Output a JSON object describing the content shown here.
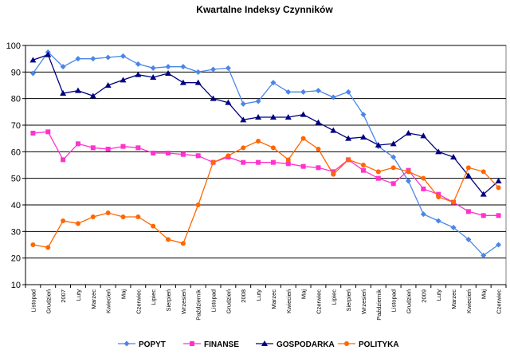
{
  "chart_data": {
    "type": "line",
    "title": "Kwartalne Indeksy Czynników",
    "xlabel": "",
    "ylabel": "",
    "ylim": [
      10,
      100
    ],
    "yticks": [
      10,
      20,
      30,
      40,
      50,
      60,
      70,
      80,
      90,
      100
    ],
    "grid": true,
    "legend_position": "bottom",
    "categories": [
      "Listopad",
      "Grudzień",
      "2007",
      "Luty",
      "Marzec",
      "Kwiecień",
      "Maj",
      "Czerwiec",
      "Lipiec",
      "Sierpień",
      "Wrzesień",
      "Październik",
      "Listopad",
      "Grudzień",
      "2008",
      "Luty",
      "Marzec",
      "Kwiecień",
      "Maj",
      "Czerwiec",
      "Lipiec",
      "Sierpień",
      "Wrzesień",
      "Październik",
      "Listopad",
      "Grudzień",
      "2009",
      "Luty",
      "Marzec",
      "Kwiecień",
      "Maj",
      "Czerwiec"
    ],
    "series": [
      {
        "name": "POPYT",
        "color": "#4a86e8",
        "marker": "diamond",
        "values": [
          89.5,
          97.5,
          92,
          95,
          95,
          95.5,
          96,
          93,
          91.5,
          92,
          92,
          90,
          91,
          91.5,
          78,
          79,
          86,
          82.5,
          82.5,
          83,
          80.5,
          82.5,
          74,
          62,
          58,
          49,
          36.5,
          34,
          31.5,
          27,
          21,
          25
        ]
      },
      {
        "name": "FINANSE",
        "color": "#ff33cc",
        "marker": "square",
        "values": [
          67,
          67.5,
          57,
          63,
          61.5,
          61,
          62,
          61.5,
          59.5,
          59.5,
          59,
          58.5,
          56,
          58,
          56,
          56,
          56,
          55.5,
          54.5,
          54,
          52.5,
          57,
          53,
          50,
          48,
          53,
          46,
          44,
          41,
          37.5,
          36,
          36
        ]
      },
      {
        "name": "GOSPODARKA",
        "color": "#000080",
        "marker": "triangle",
        "values": [
          94.5,
          96.5,
          82,
          83,
          81,
          85,
          87,
          89,
          88,
          89.5,
          86,
          86,
          80,
          78.5,
          72,
          73,
          73,
          73,
          74,
          71,
          68,
          65,
          65.5,
          62.5,
          63,
          67,
          66,
          60,
          58,
          51,
          44,
          49
        ]
      },
      {
        "name": "POLITYKA",
        "color": "#ff6600",
        "marker": "circle",
        "values": [
          25,
          24,
          34,
          33,
          35.5,
          37,
          35.5,
          35.5,
          32,
          27,
          25.5,
          40,
          56,
          58.5,
          61.5,
          64,
          61.5,
          57,
          65,
          61,
          51.5,
          57,
          55,
          52.5,
          54,
          52.5,
          50,
          43,
          41,
          54,
          52.5,
          46.5
        ]
      }
    ]
  }
}
